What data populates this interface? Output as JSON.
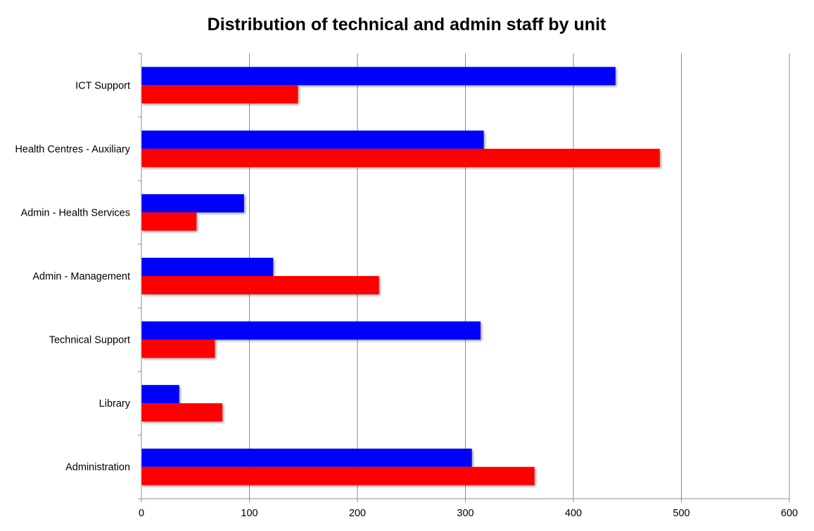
{
  "chart_data": {
    "type": "bar",
    "orientation": "horizontal",
    "title": "Distribution of technical and admin staff by unit",
    "categories": [
      "ICT Support",
      "Health Centres - Auxiliary",
      "Admin - Health Services",
      "Admin - Management",
      "Technical Support",
      "Library",
      "Administration"
    ],
    "series": [
      {
        "color": "#0000ff",
        "values": [
          439,
          317,
          95,
          122,
          314,
          35,
          306
        ]
      },
      {
        "color": "#ff0000",
        "values": [
          145,
          480,
          51,
          220,
          68,
          75,
          364
        ]
      }
    ],
    "xlim": [
      0,
      600
    ],
    "xticks": [
      "0",
      "100",
      "200",
      "300",
      "400",
      "500",
      "600"
    ],
    "grid": true,
    "legend": "none"
  }
}
